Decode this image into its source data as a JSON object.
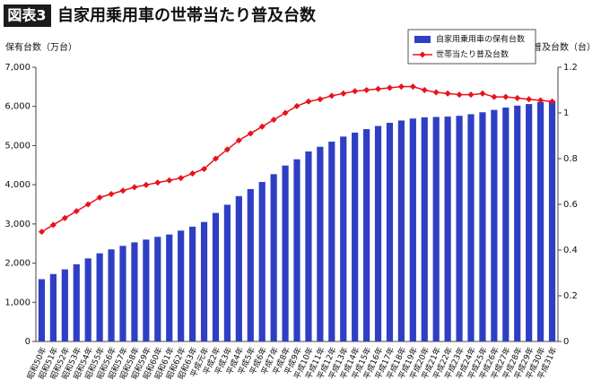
{
  "header": {
    "badge": "図表3",
    "title": "自家用乗用車の世帯当たり普及台数"
  },
  "chart_data": {
    "type": "bar_line",
    "y_label": "保有台数（万台）",
    "y2_label": "普及台数（台）",
    "categories": [
      "昭和50年",
      "昭和51年",
      "昭和52年",
      "昭和53年",
      "昭和54年",
      "昭和55年",
      "昭和56年",
      "昭和57年",
      "昭和58年",
      "昭和59年",
      "昭和60年",
      "昭和61年",
      "昭和62年",
      "昭和63年",
      "平成元年",
      "平成2年",
      "平成3年",
      "平成4年",
      "平成5年",
      "平成6年",
      "平成7年",
      "平成8年",
      "平成9年",
      "平成10年",
      "平成11年",
      "平成12年",
      "平成13年",
      "平成14年",
      "平成15年",
      "平成16年",
      "平成17年",
      "平成18年",
      "平成19年",
      "平成20年",
      "平成21年",
      "平成22年",
      "平成23年",
      "平成24年",
      "平成25年",
      "平成26年",
      "平成27年",
      "平成28年",
      "平成29年",
      "平成30年",
      "平成31年"
    ],
    "series": [
      {
        "name": "自家用乗用車の保有台数",
        "type": "bar",
        "color": "#2f3fc4",
        "values": [
          1590,
          1720,
          1840,
          1970,
          2120,
          2250,
          2350,
          2440,
          2530,
          2600,
          2670,
          2730,
          2830,
          2930,
          3050,
          3280,
          3490,
          3710,
          3890,
          4070,
          4270,
          4490,
          4650,
          4850,
          4970,
          5100,
          5230,
          5330,
          5420,
          5500,
          5580,
          5640,
          5690,
          5720,
          5730,
          5740,
          5760,
          5800,
          5850,
          5910,
          5970,
          6020,
          6060,
          6110,
          6140
        ]
      },
      {
        "name": "世帯当たり普及台数",
        "type": "line",
        "axis": "y2",
        "color": "#e8131a",
        "values": [
          0.48,
          0.51,
          0.54,
          0.57,
          0.6,
          0.63,
          0.645,
          0.66,
          0.675,
          0.685,
          0.695,
          0.705,
          0.715,
          0.735,
          0.755,
          0.8,
          0.84,
          0.88,
          0.91,
          0.94,
          0.97,
          1.0,
          1.03,
          1.05,
          1.06,
          1.075,
          1.085,
          1.095,
          1.1,
          1.105,
          1.11,
          1.115,
          1.115,
          1.1,
          1.09,
          1.085,
          1.08,
          1.08,
          1.085,
          1.07,
          1.07,
          1.065,
          1.06,
          1.055,
          1.05
        ]
      }
    ],
    "ylim": [
      0,
      7000
    ],
    "yticks": [
      0,
      {
        "value": 1000,
        "label": "1,000"
      },
      {
        "value": 2000,
        "label": "2,000"
      },
      {
        "value": 3000,
        "label": "3,000"
      },
      {
        "value": 4000,
        "label": "4,000"
      },
      {
        "value": 5000,
        "label": "5,000"
      },
      {
        "value": 6000,
        "label": "6,000"
      },
      {
        "value": 7000,
        "label": "7,000"
      }
    ],
    "y2lim": [
      0,
      1.2
    ],
    "y2ticks": [
      0,
      0.2,
      0.4,
      0.6,
      0.8,
      1,
      1.2
    ]
  }
}
